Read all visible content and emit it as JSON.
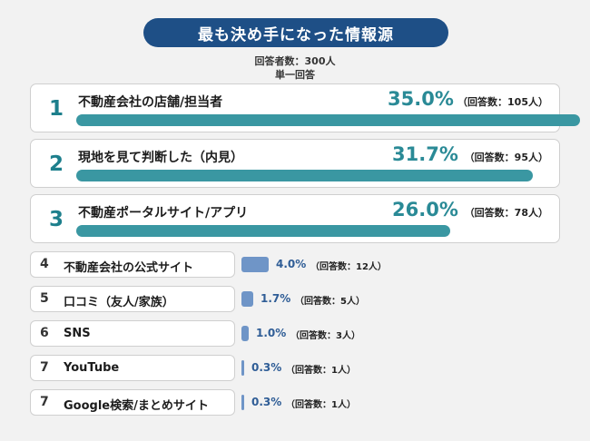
{
  "header": {
    "title": "最も決め手になった情報源",
    "respondents": "回答者数：300人",
    "answer_type": "単一回答"
  },
  "colors": {
    "title_bg": "#1e4f86",
    "top_bar": "#3a97a2",
    "top_text": "#2a8a96",
    "small_bar": "#6f95c7",
    "small_text": "#2f5d96"
  },
  "chart_data": {
    "type": "bar",
    "title": "最も決め手になった情報源",
    "unit": "%",
    "categories": [
      "不動産会社の店舗/担当者",
      "現地を見て判断した（内見）",
      "不動産ポータルサイト/アプリ",
      "不動産会社の公式サイト",
      "口コミ（友人/家族）",
      "SNS",
      "YouTube",
      "Google検索/まとめサイト"
    ],
    "ranks": [
      "1",
      "2",
      "3",
      "4",
      "5",
      "6",
      "7",
      "7"
    ],
    "values": [
      35.0,
      31.7,
      26.0,
      4.0,
      1.7,
      1.0,
      0.3,
      0.3
    ],
    "value_labels": [
      "35.0%",
      "31.7%",
      "26.0%",
      "4.0%",
      "1.7%",
      "1.0%",
      "0.3%",
      "0.3%"
    ],
    "count_labels": [
      "（回答数：105人）",
      "（回答数：95人）",
      "（回答数：78人）",
      "（回答数：12人）",
      "（回答数：5人）",
      "（回答数：3人）",
      "（回答数：1人）",
      "（回答数：1人）"
    ]
  }
}
